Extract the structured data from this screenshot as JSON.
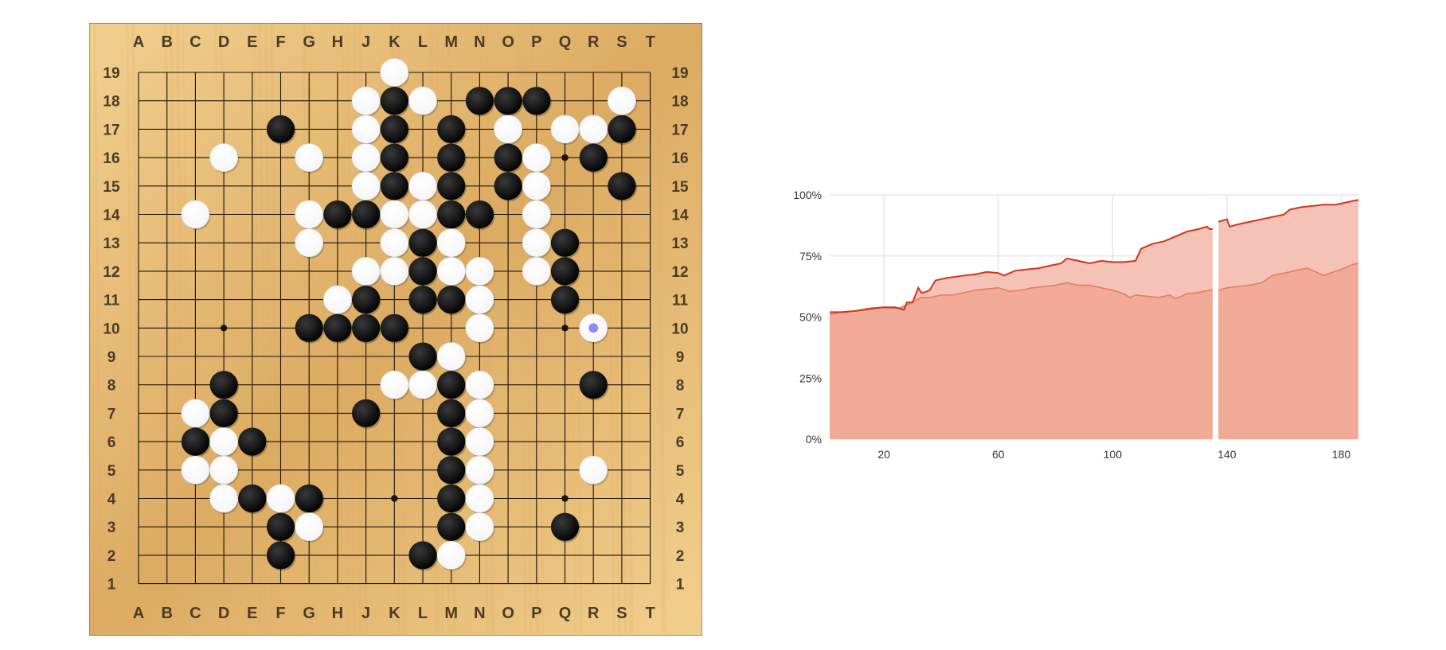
{
  "board": {
    "size": 19,
    "column_labels": [
      "A",
      "B",
      "C",
      "D",
      "E",
      "F",
      "G",
      "H",
      "J",
      "K",
      "L",
      "M",
      "N",
      "O",
      "P",
      "Q",
      "R",
      "S",
      "T"
    ],
    "row_labels": [
      "19",
      "18",
      "17",
      "16",
      "15",
      "14",
      "13",
      "12",
      "11",
      "10",
      "9",
      "8",
      "7",
      "6",
      "5",
      "4",
      "3",
      "2",
      "1"
    ],
    "colors": {
      "wood_light": "#f2cf8e",
      "wood_dark": "#dcab62",
      "grid": "#1a1208",
      "black_stone": "#000000",
      "white_stone": "#ffffff",
      "last_move_marker": "#8f8cf2"
    },
    "last_move": "R10",
    "star_points": [
      "D16",
      "K16",
      "Q16",
      "D10",
      "K10",
      "Q10",
      "D4",
      "K4",
      "Q4"
    ],
    "black_stones": [
      "K18",
      "N18",
      "O18",
      "P18",
      "F17",
      "K17",
      "M17",
      "S17",
      "K16",
      "M16",
      "O16",
      "R16",
      "K15",
      "M15",
      "O15",
      "S15",
      "H14",
      "J14",
      "M14",
      "N14",
      "L13",
      "Q13",
      "L12",
      "Q12",
      "J11",
      "L11",
      "M11",
      "Q11",
      "G10",
      "H10",
      "J10",
      "K10",
      "L9",
      "D8",
      "M8",
      "R8",
      "D7",
      "J7",
      "M7",
      "C6",
      "E6",
      "M6",
      "M5",
      "E4",
      "G4",
      "M4",
      "F3",
      "M3",
      "Q3",
      "F2",
      "L2"
    ],
    "white_stones": [
      "K19",
      "J18",
      "L18",
      "S18",
      "J17",
      "O17",
      "Q17",
      "R17",
      "D16",
      "G16",
      "J16",
      "P16",
      "J15",
      "L15",
      "P15",
      "C14",
      "G14",
      "K14",
      "L14",
      "P14",
      "G13",
      "K13",
      "M13",
      "P13",
      "J12",
      "K12",
      "M12",
      "N12",
      "P12",
      "H11",
      "N11",
      "N10",
      "R10",
      "M9",
      "K8",
      "L8",
      "N8",
      "C7",
      "N7",
      "D6",
      "N6",
      "C5",
      "D5",
      "N5",
      "R5",
      "D4",
      "F4",
      "N4",
      "G3",
      "N3",
      "M2"
    ]
  },
  "chart_data": {
    "type": "area",
    "x_ticks": [
      20,
      60,
      100,
      140,
      180
    ],
    "y_ticks": [
      "0%",
      "25%",
      "50%",
      "75%",
      "100%"
    ],
    "xlim": [
      1,
      186
    ],
    "ylim": [
      0,
      100
    ],
    "grid": true,
    "gap_x": [
      135,
      137
    ],
    "colors": {
      "lower_fill": "#f1aa98",
      "upper_fill": "#f5c2b7",
      "lower_line": "#e87c5f",
      "upper_line": "#d23518",
      "grid": "#d9d9d9"
    },
    "series": [
      {
        "points": [
          [
            1,
            51
          ],
          [
            5,
            52
          ],
          [
            10,
            52.5
          ],
          [
            15,
            53
          ],
          [
            20,
            54
          ],
          [
            25,
            53.5
          ],
          [
            28,
            55
          ],
          [
            30,
            56
          ],
          [
            33,
            58
          ],
          [
            36,
            58
          ],
          [
            40,
            59
          ],
          [
            44,
            59
          ],
          [
            48,
            60
          ],
          [
            52,
            61
          ],
          [
            56,
            61.5
          ],
          [
            60,
            62
          ],
          [
            64,
            60.5
          ],
          [
            68,
            61
          ],
          [
            72,
            62
          ],
          [
            76,
            62.5
          ],
          [
            80,
            63
          ],
          [
            84,
            64
          ],
          [
            88,
            63
          ],
          [
            92,
            63
          ],
          [
            96,
            62
          ],
          [
            100,
            61
          ],
          [
            104,
            59.5
          ],
          [
            106,
            58
          ],
          [
            108,
            59
          ],
          [
            112,
            58.5
          ],
          [
            116,
            58
          ],
          [
            120,
            59
          ],
          [
            122,
            57.5
          ],
          [
            126,
            59.5
          ],
          [
            130,
            60
          ],
          [
            134,
            61
          ],
          [
            135,
            61
          ],
          [
            137,
            61
          ],
          [
            140,
            62
          ],
          [
            144,
            62.5
          ],
          [
            148,
            63
          ],
          [
            152,
            64
          ],
          [
            156,
            67
          ],
          [
            160,
            68
          ],
          [
            164,
            69
          ],
          [
            168,
            70
          ],
          [
            170,
            69
          ],
          [
            174,
            67
          ],
          [
            176,
            68
          ],
          [
            180,
            69.5
          ],
          [
            184,
            71.5
          ],
          [
            186,
            72
          ]
        ]
      },
      {
        "points": [
          [
            1,
            52
          ],
          [
            5,
            52
          ],
          [
            10,
            52.5
          ],
          [
            15,
            53.5
          ],
          [
            20,
            54
          ],
          [
            24,
            54
          ],
          [
            27,
            53
          ],
          [
            28,
            56
          ],
          [
            30,
            56
          ],
          [
            32,
            62
          ],
          [
            33,
            60
          ],
          [
            34,
            60
          ],
          [
            36,
            61
          ],
          [
            38,
            65
          ],
          [
            42,
            66
          ],
          [
            48,
            67
          ],
          [
            52,
            67.5
          ],
          [
            56,
            68.5
          ],
          [
            60,
            68
          ],
          [
            62,
            67
          ],
          [
            66,
            69
          ],
          [
            70,
            69.5
          ],
          [
            74,
            70
          ],
          [
            78,
            71
          ],
          [
            82,
            72
          ],
          [
            84,
            74
          ],
          [
            88,
            73
          ],
          [
            92,
            72
          ],
          [
            96,
            73
          ],
          [
            100,
            72.5
          ],
          [
            104,
            72.5
          ],
          [
            108,
            73
          ],
          [
            110,
            78
          ],
          [
            114,
            80
          ],
          [
            118,
            81
          ],
          [
            122,
            83
          ],
          [
            126,
            85
          ],
          [
            130,
            86
          ],
          [
            133,
            87
          ],
          [
            134,
            86
          ],
          [
            135,
            86
          ],
          [
            137,
            89
          ],
          [
            140,
            90
          ],
          [
            141,
            87
          ],
          [
            144,
            88
          ],
          [
            148,
            89
          ],
          [
            152,
            90
          ],
          [
            156,
            91
          ],
          [
            160,
            92
          ],
          [
            162,
            94
          ],
          [
            166,
            95
          ],
          [
            170,
            95.5
          ],
          [
            174,
            96
          ],
          [
            178,
            96
          ],
          [
            182,
            97
          ],
          [
            186,
            98
          ]
        ]
      }
    ]
  }
}
